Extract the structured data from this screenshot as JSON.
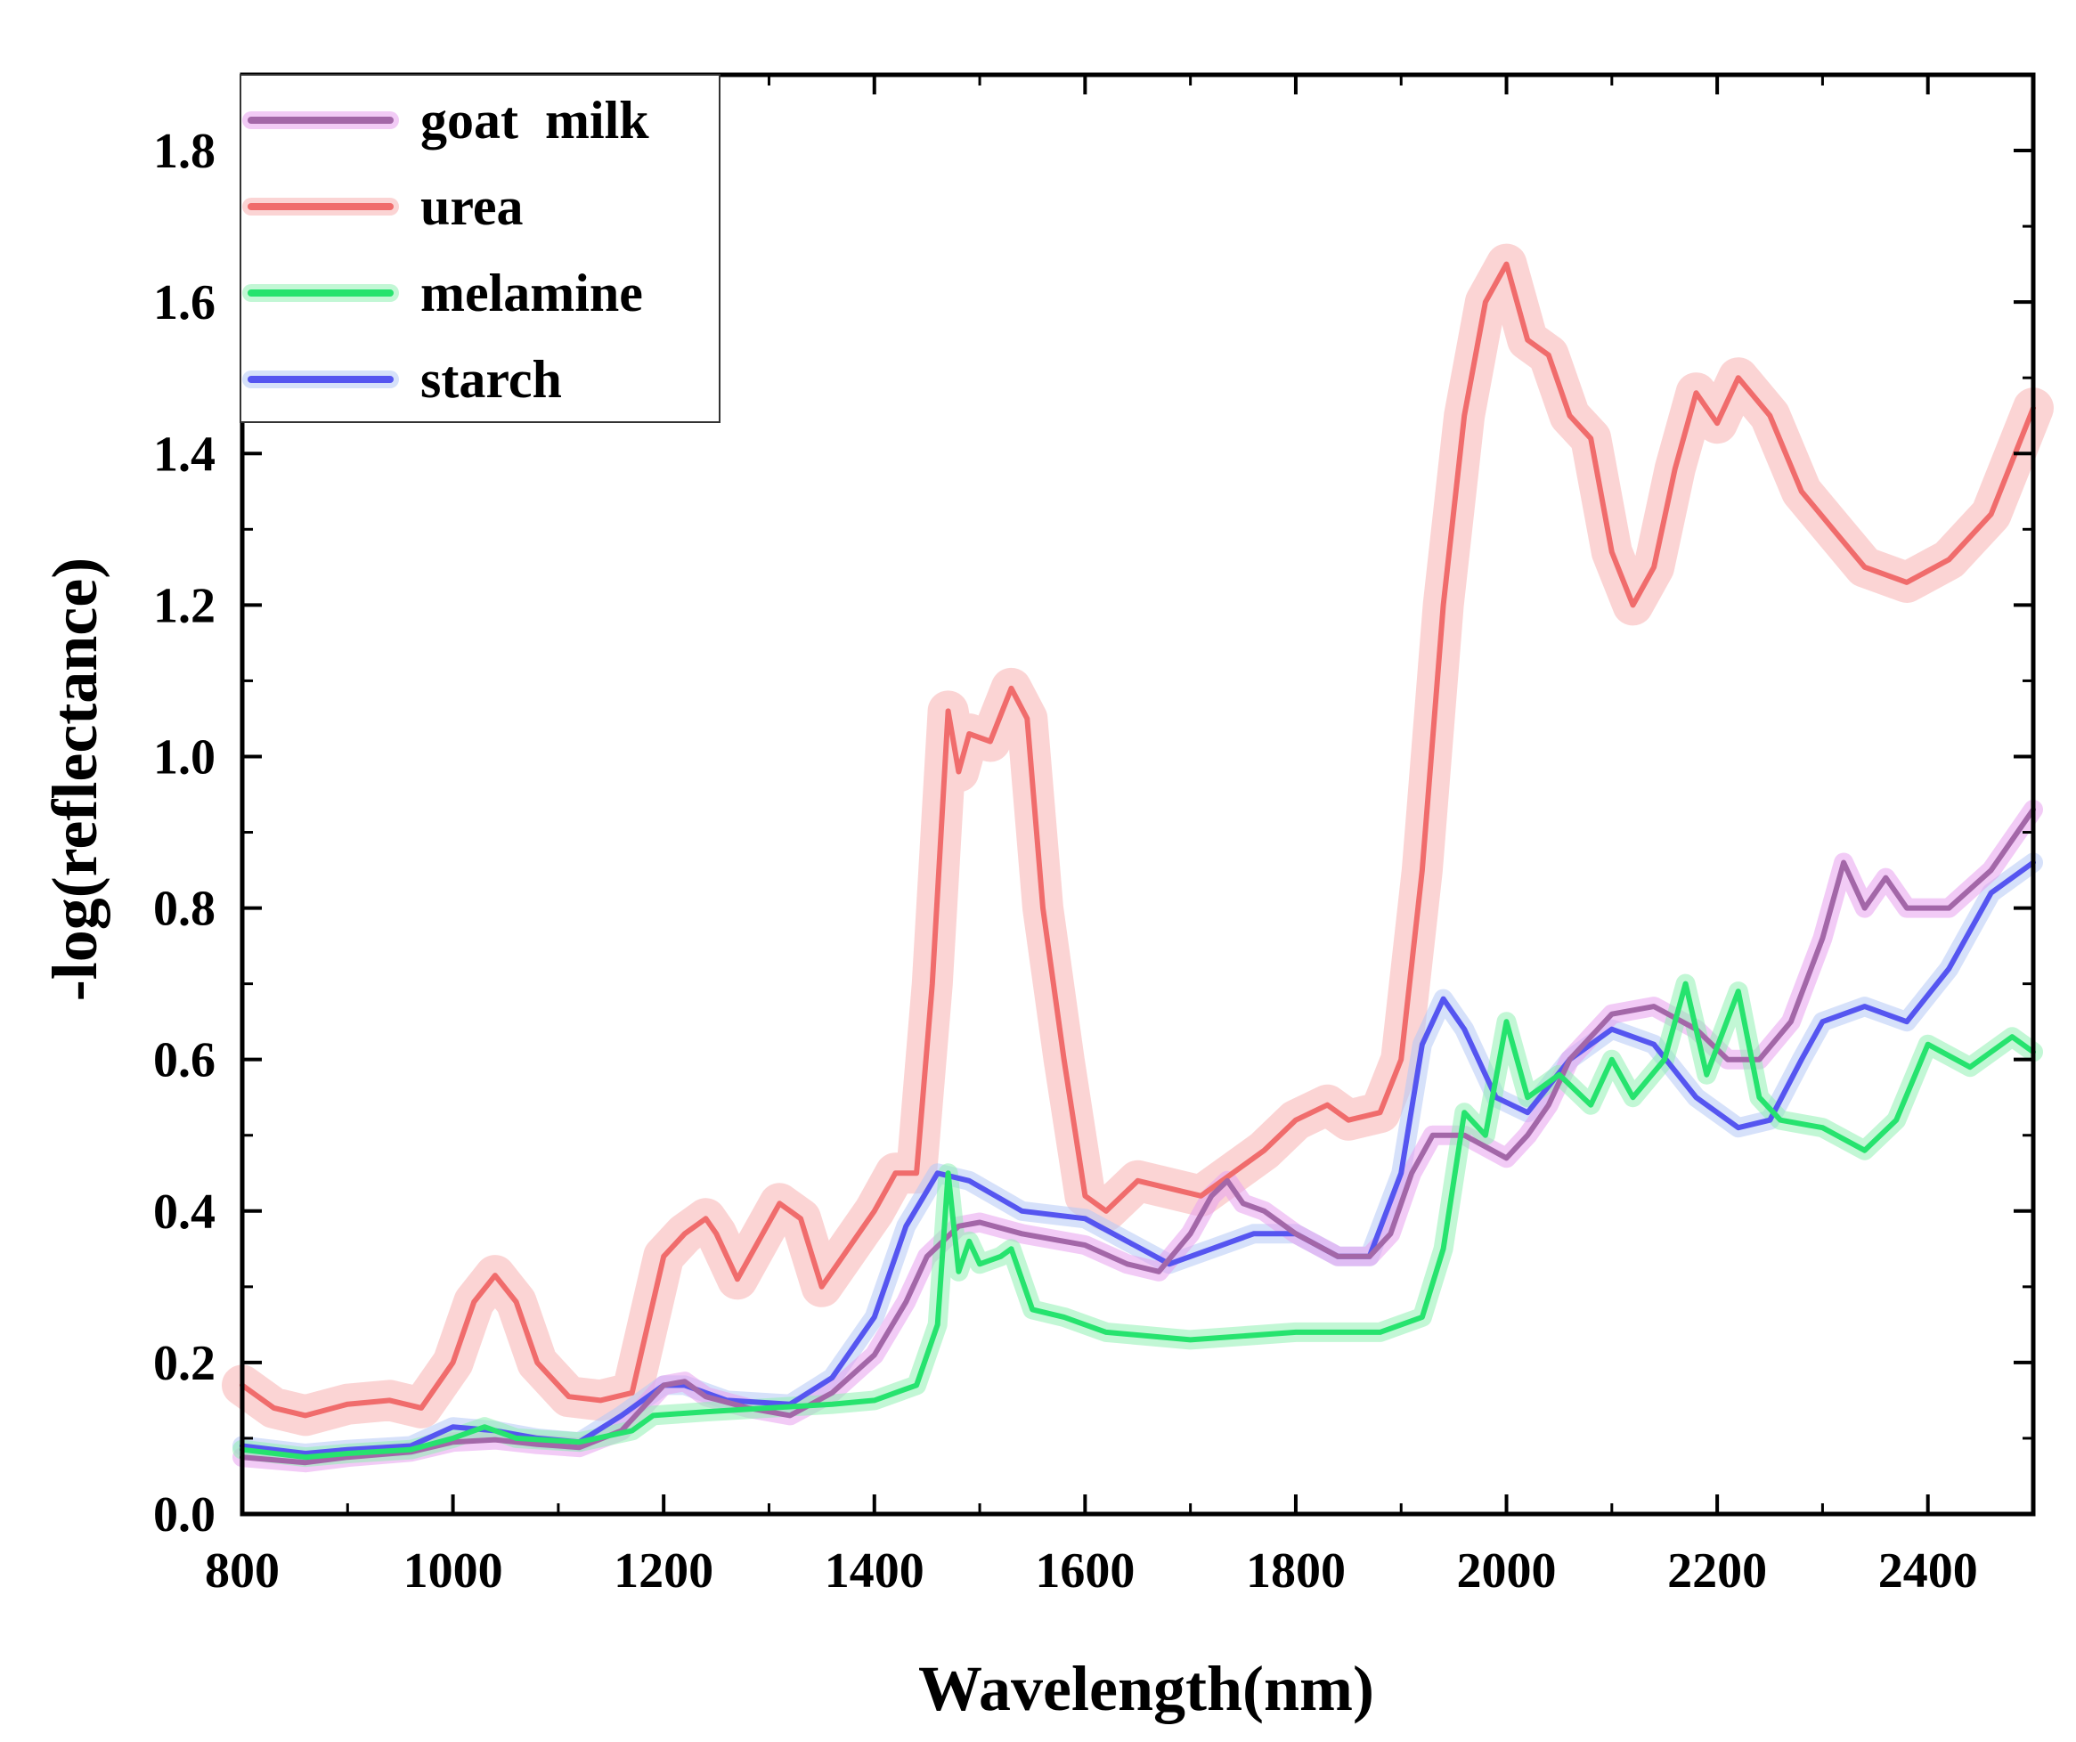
{
  "chart_data": {
    "type": "line",
    "title": "",
    "xlabel": "Wavelength(nm)",
    "ylabel": "-log(reflectance)",
    "xlim": [
      800,
      2500
    ],
    "ylim": [
      0.0,
      1.9
    ],
    "xticks": [
      800,
      1000,
      1200,
      1400,
      1600,
      1800,
      2000,
      2200,
      2400
    ],
    "xtick_labels": [
      "800",
      "1000",
      "1200",
      "1400",
      "1600",
      "1800",
      "2000",
      "2200",
      "2400"
    ],
    "yticks": [
      0.0,
      0.2,
      0.4,
      0.6,
      0.8,
      1.0,
      1.2,
      1.4,
      1.6,
      1.8
    ],
    "ytick_labels": [
      "0.0",
      "0.2",
      "0.4",
      "0.6",
      "0.8",
      "1.0",
      "1.2",
      "1.4",
      "1.6",
      "1.8"
    ],
    "legend_position": "top-left",
    "series": [
      {
        "name": "goat  milk",
        "color": "#a367a8",
        "band_color": "#e8a0ee",
        "points": [
          [
            800,
            0.075
          ],
          [
            860,
            0.068
          ],
          [
            900,
            0.075
          ],
          [
            960,
            0.082
          ],
          [
            1000,
            0.095
          ],
          [
            1040,
            0.098
          ],
          [
            1080,
            0.092
          ],
          [
            1120,
            0.088
          ],
          [
            1160,
            0.11
          ],
          [
            1200,
            0.17
          ],
          [
            1220,
            0.175
          ],
          [
            1240,
            0.155
          ],
          [
            1280,
            0.14
          ],
          [
            1320,
            0.13
          ],
          [
            1360,
            0.16
          ],
          [
            1400,
            0.21
          ],
          [
            1430,
            0.28
          ],
          [
            1450,
            0.34
          ],
          [
            1480,
            0.38
          ],
          [
            1500,
            0.385
          ],
          [
            1540,
            0.37
          ],
          [
            1600,
            0.355
          ],
          [
            1640,
            0.33
          ],
          [
            1670,
            0.32
          ],
          [
            1700,
            0.37
          ],
          [
            1720,
            0.42
          ],
          [
            1735,
            0.44
          ],
          [
            1750,
            0.41
          ],
          [
            1770,
            0.4
          ],
          [
            1800,
            0.37
          ],
          [
            1840,
            0.34
          ],
          [
            1870,
            0.34
          ],
          [
            1890,
            0.37
          ],
          [
            1910,
            0.45
          ],
          [
            1930,
            0.5
          ],
          [
            1960,
            0.5
          ],
          [
            2000,
            0.47
          ],
          [
            2020,
            0.5
          ],
          [
            2040,
            0.54
          ],
          [
            2060,
            0.6
          ],
          [
            2100,
            0.66
          ],
          [
            2140,
            0.67
          ],
          [
            2180,
            0.64
          ],
          [
            2210,
            0.6
          ],
          [
            2240,
            0.6
          ],
          [
            2270,
            0.65
          ],
          [
            2300,
            0.76
          ],
          [
            2320,
            0.86
          ],
          [
            2340,
            0.8
          ],
          [
            2360,
            0.84
          ],
          [
            2380,
            0.8
          ],
          [
            2420,
            0.8
          ],
          [
            2460,
            0.85
          ],
          [
            2500,
            0.93
          ]
        ]
      },
      {
        "name": "urea",
        "color": "#f06c6c",
        "band_color": "#f7b0b0",
        "points": [
          [
            800,
            0.17
          ],
          [
            830,
            0.14
          ],
          [
            860,
            0.13
          ],
          [
            900,
            0.145
          ],
          [
            940,
            0.15
          ],
          [
            970,
            0.14
          ],
          [
            1000,
            0.2
          ],
          [
            1020,
            0.28
          ],
          [
            1040,
            0.315
          ],
          [
            1060,
            0.28
          ],
          [
            1080,
            0.2
          ],
          [
            1110,
            0.155
          ],
          [
            1140,
            0.15
          ],
          [
            1170,
            0.16
          ],
          [
            1185,
            0.25
          ],
          [
            1200,
            0.34
          ],
          [
            1220,
            0.37
          ],
          [
            1240,
            0.39
          ],
          [
            1250,
            0.37
          ],
          [
            1270,
            0.31
          ],
          [
            1290,
            0.36
          ],
          [
            1310,
            0.41
          ],
          [
            1330,
            0.39
          ],
          [
            1350,
            0.3
          ],
          [
            1370,
            0.34
          ],
          [
            1400,
            0.4
          ],
          [
            1420,
            0.45
          ],
          [
            1440,
            0.45
          ],
          [
            1455,
            0.7
          ],
          [
            1470,
            1.06
          ],
          [
            1480,
            0.98
          ],
          [
            1490,
            1.03
          ],
          [
            1510,
            1.02
          ],
          [
            1530,
            1.09
          ],
          [
            1545,
            1.05
          ],
          [
            1560,
            0.8
          ],
          [
            1580,
            0.6
          ],
          [
            1600,
            0.42
          ],
          [
            1620,
            0.4
          ],
          [
            1650,
            0.44
          ],
          [
            1680,
            0.43
          ],
          [
            1710,
            0.42
          ],
          [
            1740,
            0.45
          ],
          [
            1770,
            0.48
          ],
          [
            1800,
            0.52
          ],
          [
            1830,
            0.54
          ],
          [
            1850,
            0.52
          ],
          [
            1880,
            0.53
          ],
          [
            1900,
            0.6
          ],
          [
            1920,
            0.85
          ],
          [
            1940,
            1.2
          ],
          [
            1960,
            1.45
          ],
          [
            1980,
            1.6
          ],
          [
            2000,
            1.65
          ],
          [
            2020,
            1.55
          ],
          [
            2040,
            1.53
          ],
          [
            2060,
            1.45
          ],
          [
            2080,
            1.42
          ],
          [
            2100,
            1.27
          ],
          [
            2120,
            1.2
          ],
          [
            2140,
            1.25
          ],
          [
            2160,
            1.38
          ],
          [
            2180,
            1.48
          ],
          [
            2200,
            1.44
          ],
          [
            2220,
            1.5
          ],
          [
            2250,
            1.45
          ],
          [
            2280,
            1.35
          ],
          [
            2310,
            1.3
          ],
          [
            2340,
            1.25
          ],
          [
            2380,
            1.23
          ],
          [
            2420,
            1.26
          ],
          [
            2460,
            1.32
          ],
          [
            2500,
            1.46
          ]
        ]
      },
      {
        "name": "melamine",
        "color": "#26e36e",
        "band_color": "#8ff0b3",
        "points": [
          [
            800,
            0.085
          ],
          [
            860,
            0.075
          ],
          [
            900,
            0.08
          ],
          [
            960,
            0.085
          ],
          [
            1000,
            0.1
          ],
          [
            1030,
            0.115
          ],
          [
            1060,
            0.1
          ],
          [
            1120,
            0.095
          ],
          [
            1170,
            0.11
          ],
          [
            1190,
            0.13
          ],
          [
            1240,
            0.135
          ],
          [
            1300,
            0.14
          ],
          [
            1360,
            0.145
          ],
          [
            1400,
            0.15
          ],
          [
            1440,
            0.17
          ],
          [
            1460,
            0.25
          ],
          [
            1470,
            0.45
          ],
          [
            1480,
            0.32
          ],
          [
            1490,
            0.36
          ],
          [
            1500,
            0.33
          ],
          [
            1520,
            0.34
          ],
          [
            1530,
            0.35
          ],
          [
            1550,
            0.27
          ],
          [
            1580,
            0.26
          ],
          [
            1620,
            0.24
          ],
          [
            1700,
            0.23
          ],
          [
            1800,
            0.24
          ],
          [
            1880,
            0.24
          ],
          [
            1920,
            0.26
          ],
          [
            1940,
            0.35
          ],
          [
            1960,
            0.53
          ],
          [
            1980,
            0.5
          ],
          [
            2000,
            0.65
          ],
          [
            2020,
            0.55
          ],
          [
            2050,
            0.58
          ],
          [
            2080,
            0.54
          ],
          [
            2100,
            0.6
          ],
          [
            2120,
            0.55
          ],
          [
            2150,
            0.6
          ],
          [
            2170,
            0.7
          ],
          [
            2190,
            0.58
          ],
          [
            2220,
            0.69
          ],
          [
            2240,
            0.55
          ],
          [
            2260,
            0.52
          ],
          [
            2300,
            0.51
          ],
          [
            2340,
            0.48
          ],
          [
            2370,
            0.52
          ],
          [
            2400,
            0.62
          ],
          [
            2440,
            0.59
          ],
          [
            2480,
            0.63
          ],
          [
            2500,
            0.61
          ]
        ]
      },
      {
        "name": "starch",
        "color": "#5555f0",
        "band_color": "#b4c9f5",
        "points": [
          [
            800,
            0.09
          ],
          [
            860,
            0.08
          ],
          [
            900,
            0.085
          ],
          [
            960,
            0.09
          ],
          [
            1000,
            0.115
          ],
          [
            1040,
            0.11
          ],
          [
            1080,
            0.1
          ],
          [
            1120,
            0.095
          ],
          [
            1160,
            0.13
          ],
          [
            1200,
            0.17
          ],
          [
            1220,
            0.17
          ],
          [
            1260,
            0.15
          ],
          [
            1320,
            0.145
          ],
          [
            1360,
            0.18
          ],
          [
            1400,
            0.26
          ],
          [
            1430,
            0.38
          ],
          [
            1460,
            0.45
          ],
          [
            1490,
            0.44
          ],
          [
            1540,
            0.4
          ],
          [
            1600,
            0.39
          ],
          [
            1640,
            0.36
          ],
          [
            1680,
            0.33
          ],
          [
            1720,
            0.35
          ],
          [
            1760,
            0.37
          ],
          [
            1800,
            0.37
          ],
          [
            1840,
            0.34
          ],
          [
            1870,
            0.34
          ],
          [
            1900,
            0.45
          ],
          [
            1920,
            0.62
          ],
          [
            1940,
            0.68
          ],
          [
            1960,
            0.64
          ],
          [
            1990,
            0.55
          ],
          [
            2020,
            0.53
          ],
          [
            2060,
            0.6
          ],
          [
            2100,
            0.64
          ],
          [
            2140,
            0.62
          ],
          [
            2180,
            0.55
          ],
          [
            2220,
            0.51
          ],
          [
            2250,
            0.52
          ],
          [
            2280,
            0.6
          ],
          [
            2300,
            0.65
          ],
          [
            2340,
            0.67
          ],
          [
            2380,
            0.65
          ],
          [
            2420,
            0.72
          ],
          [
            2460,
            0.82
          ],
          [
            2500,
            0.86
          ]
        ]
      }
    ]
  }
}
